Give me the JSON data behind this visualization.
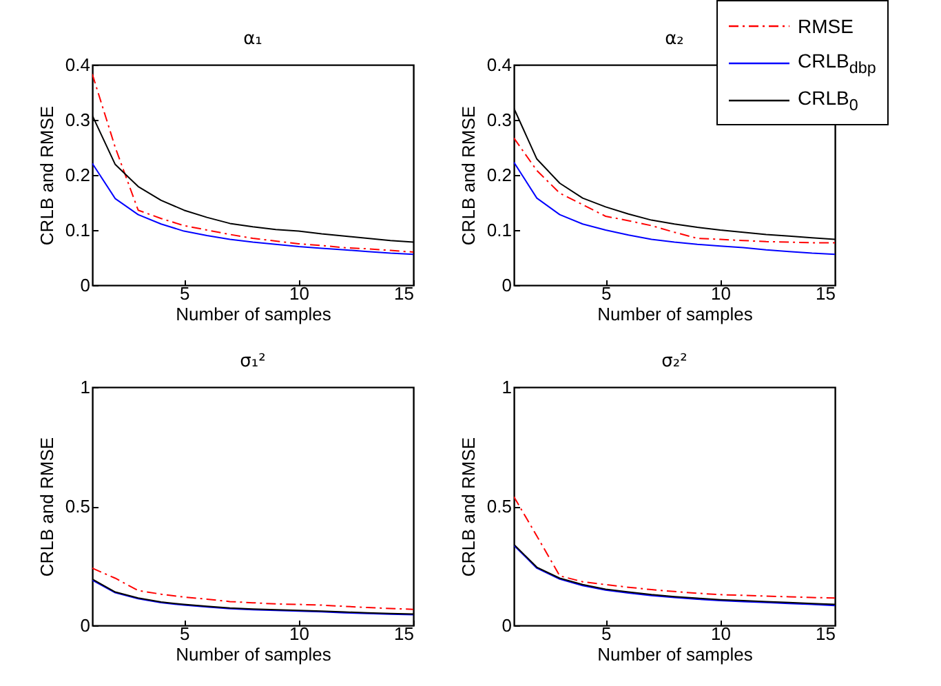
{
  "chart_data": [
    {
      "type": "line",
      "title": "α₁",
      "xlabel": "Number of samples",
      "ylabel": "CRLB and RMSE",
      "xlim": [
        1,
        15
      ],
      "xticks": [
        5,
        10,
        15
      ],
      "ylim": [
        0,
        0.4
      ],
      "yticks": [
        0,
        0.1,
        0.2,
        0.3,
        0.4
      ],
      "x": [
        1,
        2,
        3,
        4,
        5,
        6,
        7,
        8,
        9,
        10,
        11,
        12,
        13,
        14,
        15
      ],
      "series": [
        {
          "color": "#ff0000",
          "line_style": "dashed",
          "values": [
            0.383,
            0.25,
            0.136,
            0.121,
            0.108,
            0.1,
            0.092,
            0.085,
            0.08,
            0.075,
            0.072,
            0.068,
            0.066,
            0.063,
            0.06
          ]
        },
        {
          "color": "#0000ff",
          "line_style": "solid",
          "values": [
            0.221,
            0.157,
            0.128,
            0.111,
            0.098,
            0.09,
            0.083,
            0.078,
            0.074,
            0.07,
            0.067,
            0.064,
            0.061,
            0.058,
            0.056
          ]
        },
        {
          "color": "#000000",
          "line_style": "solid",
          "values": [
            0.308,
            0.219,
            0.179,
            0.154,
            0.136,
            0.123,
            0.112,
            0.106,
            0.101,
            0.098,
            0.093,
            0.089,
            0.085,
            0.081,
            0.078
          ]
        }
      ]
    },
    {
      "type": "line",
      "title": "α₂",
      "xlabel": "Number of samples",
      "ylabel": "CRLB and RMSE",
      "xlim": [
        1,
        15
      ],
      "xticks": [
        5,
        10,
        15
      ],
      "ylim": [
        0,
        0.4
      ],
      "yticks": [
        0,
        0.1,
        0.2,
        0.3,
        0.4
      ],
      "legend": "top right",
      "x": [
        1,
        2,
        3,
        4,
        5,
        6,
        7,
        8,
        9,
        10,
        11,
        12,
        13,
        14,
        15
      ],
      "series": [
        {
          "name": "RMSE",
          "color": "#ff0000",
          "line_style": "dashed",
          "values": [
            0.267,
            0.208,
            0.167,
            0.146,
            0.125,
            0.117,
            0.108,
            0.096,
            0.085,
            0.083,
            0.081,
            0.079,
            0.078,
            0.077,
            0.077
          ]
        },
        {
          "name": "CRLB$_{dbp}$",
          "color": "#0000ff",
          "line_style": "solid",
          "values": [
            0.223,
            0.158,
            0.128,
            0.111,
            0.1,
            0.091,
            0.083,
            0.078,
            0.074,
            0.071,
            0.068,
            0.064,
            0.061,
            0.058,
            0.056
          ]
        },
        {
          "name": "CRLB$_{0}$",
          "color": "#000000",
          "line_style": "solid",
          "values": [
            0.321,
            0.229,
            0.185,
            0.158,
            0.142,
            0.129,
            0.118,
            0.111,
            0.105,
            0.1,
            0.096,
            0.092,
            0.089,
            0.086,
            0.083
          ]
        }
      ]
    },
    {
      "type": "line",
      "title": "σ₁²",
      "xlabel": "Number of samples",
      "ylabel": "CRLB and RMSE",
      "xlim": [
        1,
        15
      ],
      "xticks": [
        5,
        10,
        15
      ],
      "ylim": [
        0,
        1
      ],
      "yticks": [
        0,
        0.5,
        1
      ],
      "x": [
        1,
        2,
        3,
        4,
        5,
        6,
        7,
        8,
        9,
        10,
        11,
        12,
        13,
        14,
        15
      ],
      "series": [
        {
          "color": "#ff0000",
          "line_style": "dashed",
          "values": [
            0.24,
            0.198,
            0.146,
            0.131,
            0.119,
            0.11,
            0.1,
            0.095,
            0.09,
            0.088,
            0.085,
            0.08,
            0.075,
            0.071,
            0.067
          ]
        },
        {
          "color": "#0000ff",
          "line_style": "solid",
          "values": [
            0.19,
            0.137,
            0.112,
            0.095,
            0.085,
            0.077,
            0.07,
            0.066,
            0.063,
            0.06,
            0.057,
            0.053,
            0.05,
            0.047,
            0.045
          ]
        },
        {
          "color": "#000000",
          "line_style": "solid",
          "values": [
            0.194,
            0.14,
            0.115,
            0.098,
            0.088,
            0.08,
            0.073,
            0.069,
            0.066,
            0.063,
            0.06,
            0.056,
            0.053,
            0.05,
            0.048
          ]
        }
      ]
    },
    {
      "type": "line",
      "title": "σ₂²",
      "xlabel": "Number of samples",
      "ylabel": "CRLB and RMSE",
      "xlim": [
        1,
        15
      ],
      "xticks": [
        5,
        10,
        15
      ],
      "ylim": [
        0,
        1
      ],
      "yticks": [
        0,
        0.5,
        1
      ],
      "x": [
        1,
        2,
        3,
        4,
        5,
        6,
        7,
        8,
        9,
        10,
        11,
        12,
        13,
        14,
        15
      ],
      "series": [
        {
          "color": "#ff0000",
          "line_style": "dashed",
          "values": [
            0.54,
            0.375,
            0.208,
            0.183,
            0.171,
            0.16,
            0.15,
            0.142,
            0.135,
            0.129,
            0.126,
            0.123,
            0.12,
            0.117,
            0.115
          ]
        },
        {
          "color": "#0000ff",
          "line_style": "solid",
          "values": [
            0.336,
            0.24,
            0.194,
            0.167,
            0.148,
            0.136,
            0.125,
            0.117,
            0.11,
            0.104,
            0.1,
            0.096,
            0.092,
            0.088,
            0.083
          ]
        },
        {
          "color": "#000000",
          "line_style": "solid",
          "values": [
            0.34,
            0.244,
            0.198,
            0.171,
            0.152,
            0.14,
            0.129,
            0.121,
            0.114,
            0.108,
            0.104,
            0.1,
            0.096,
            0.092,
            0.088
          ]
        }
      ]
    }
  ]
}
